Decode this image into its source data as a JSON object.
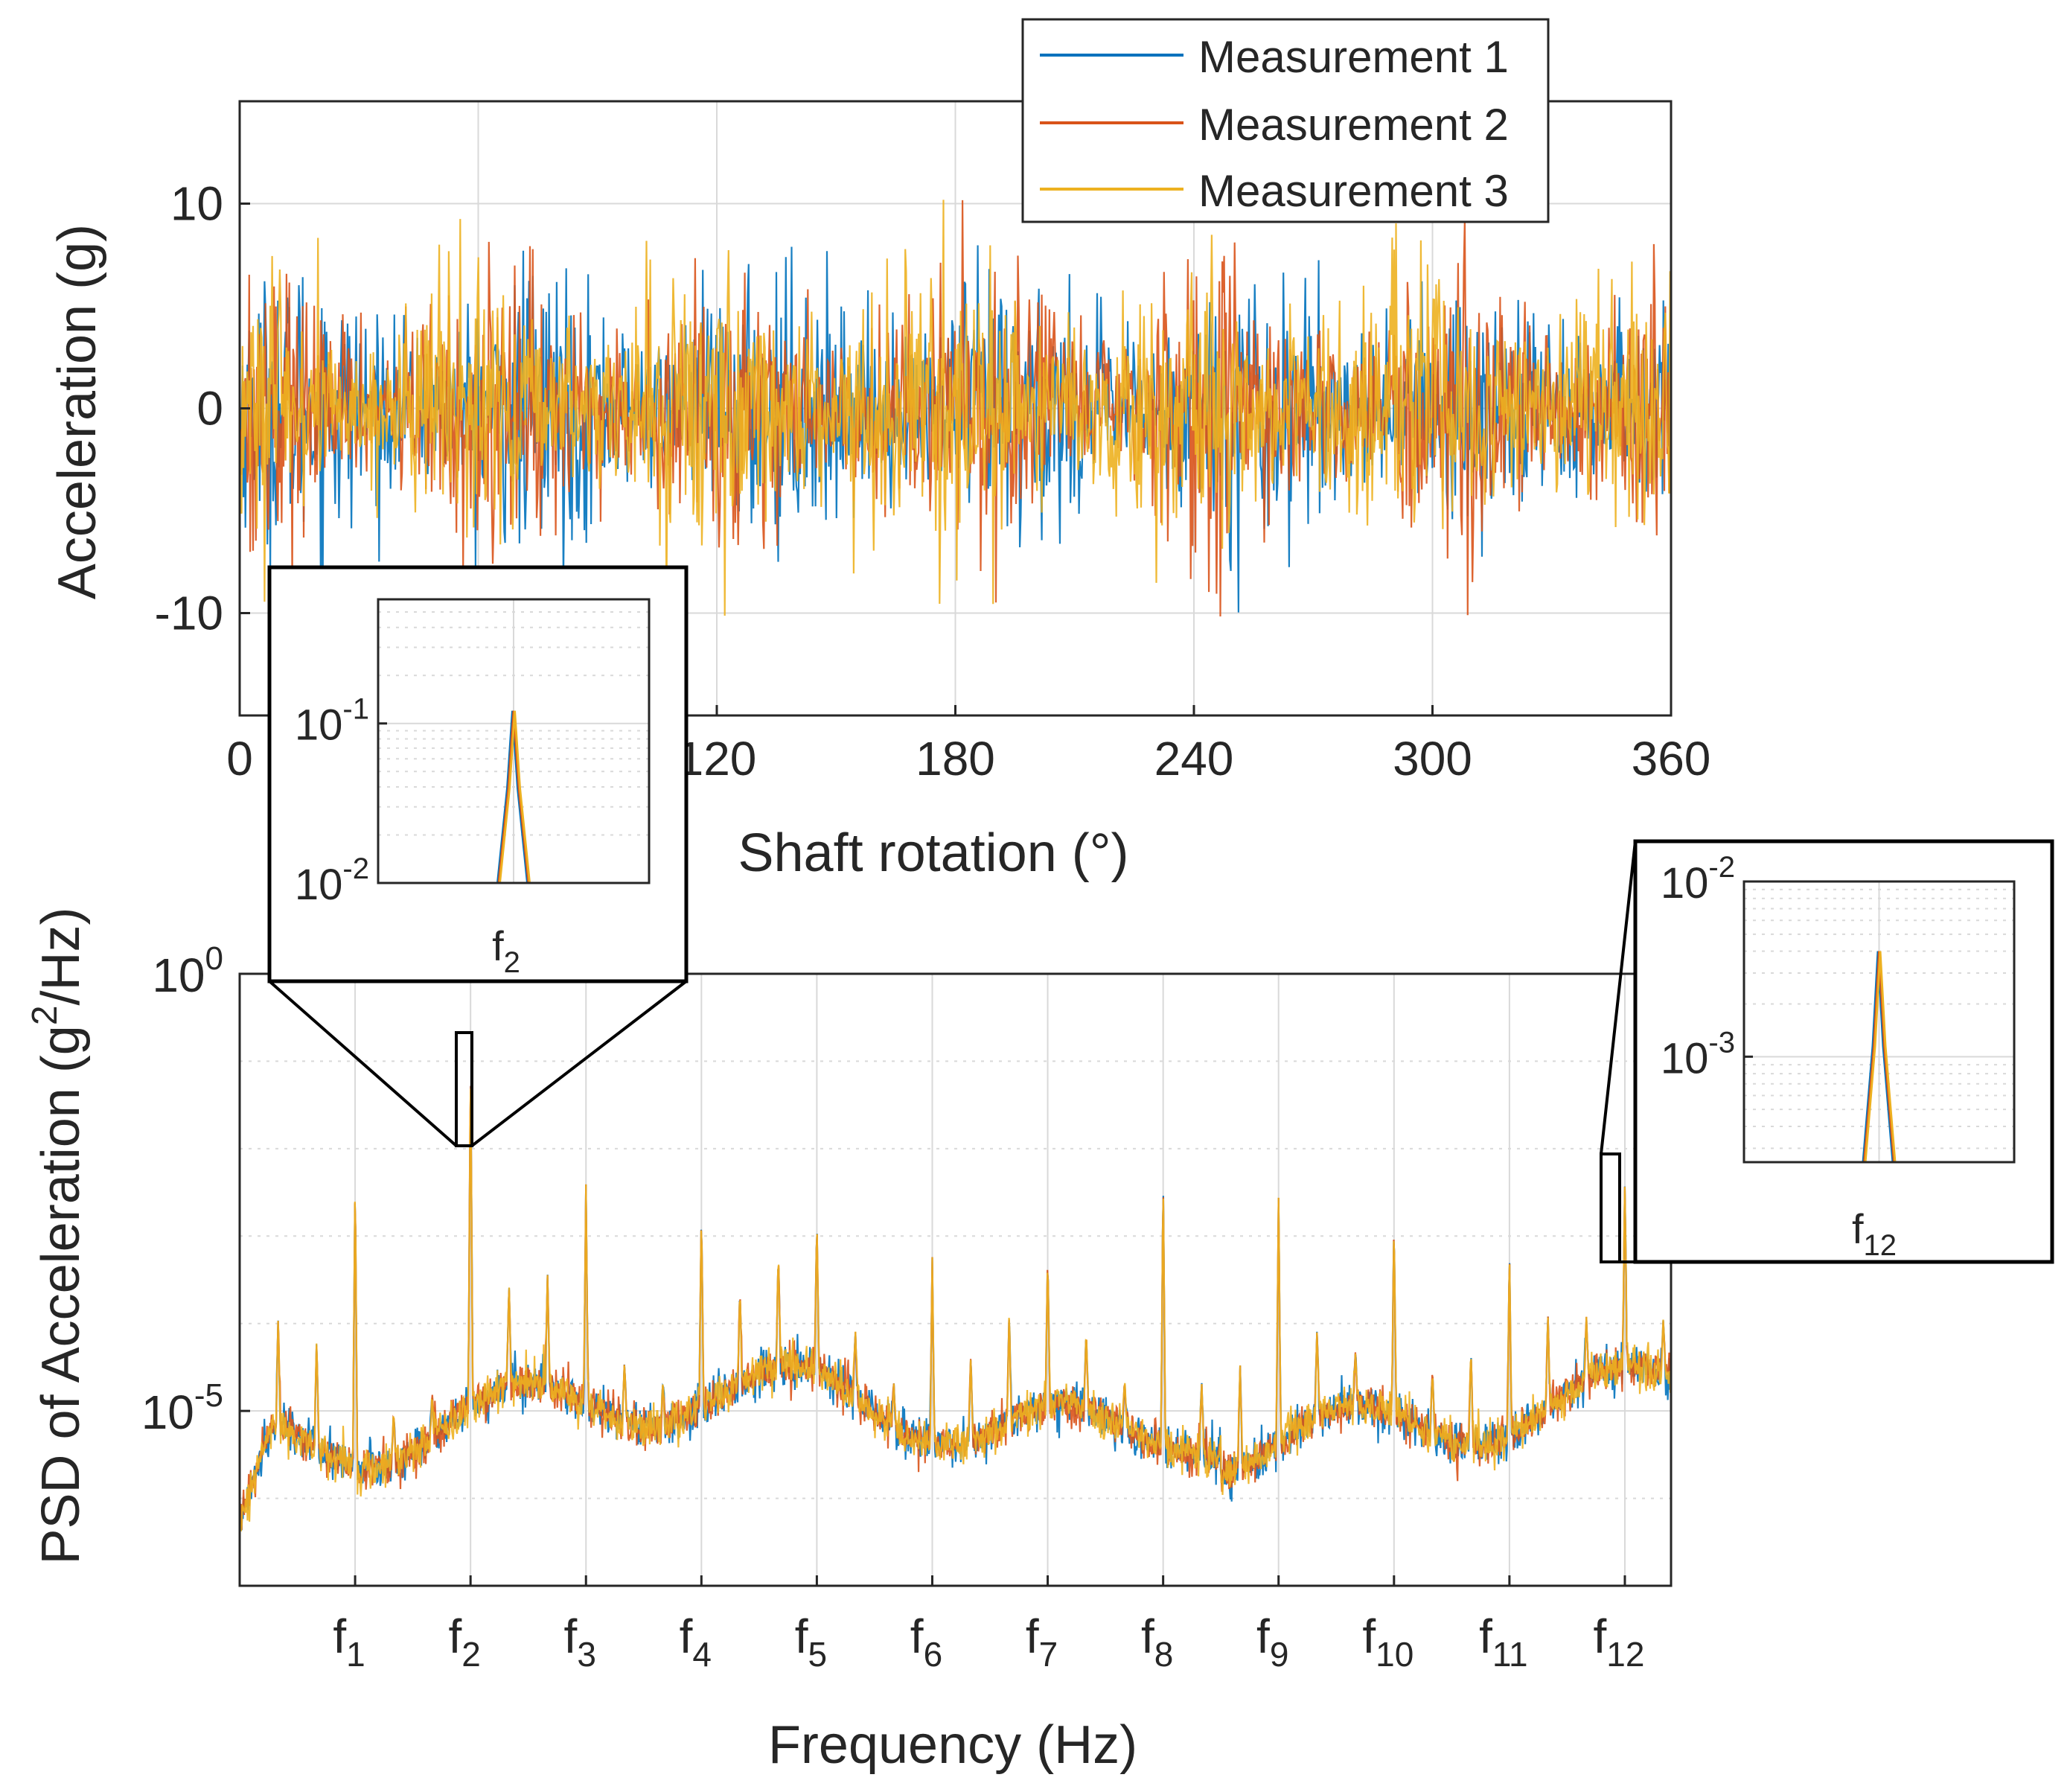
{
  "figure": {
    "colors": {
      "measurement_1": "#0072BD",
      "measurement_2": "#D95319",
      "measurement_3": "#EDB120",
      "axis": "#262626",
      "grid": "#d9d9d9"
    }
  },
  "chart_data": [
    {
      "type": "line",
      "xlabel": "Shaft rotation (°)",
      "ylabel": "Acceleration (g)",
      "xlim": [
        0,
        360
      ],
      "ylim": [
        -15,
        15
      ],
      "x_ticks": [
        0,
        60,
        120,
        180,
        240,
        300,
        360
      ],
      "x_tick_labels": [
        "0",
        "60",
        "120",
        "180",
        "240",
        "300",
        "360"
      ],
      "y_ticks": [
        -10,
        0,
        10
      ],
      "y_tick_labels": [
        "-10",
        "0",
        "10"
      ],
      "grid": true,
      "legend_position": "top-right",
      "series": [
        {
          "name": "Measurement 1",
          "color": "#0072BD",
          "amplitude_range": [
            -12,
            11
          ]
        },
        {
          "name": "Measurement 2",
          "color": "#D95319",
          "amplitude_range": [
            -12,
            10.5
          ]
        },
        {
          "name": "Measurement 3",
          "color": "#EDB120",
          "amplitude_range": [
            -15,
            12
          ]
        }
      ]
    },
    {
      "type": "line",
      "xlabel": "Frequency (Hz)",
      "ylabel_parts": [
        "PSD of Acceleration (g",
        "2",
        "/Hz)"
      ],
      "y_scale": "log",
      "y_decades_shown": [
        0,
        -5
      ],
      "ylim": [
        1e-07,
        1
      ],
      "y_tick_labels": [
        {
          "base": "10",
          "exp": "0",
          "value": 1
        },
        {
          "base": "10",
          "exp": "-5",
          "value": 1e-05
        }
      ],
      "x_ticks": [
        {
          "base": "f",
          "sub": "1"
        },
        {
          "base": "f",
          "sub": "2"
        },
        {
          "base": "f",
          "sub": "3"
        },
        {
          "base": "f",
          "sub": "4"
        },
        {
          "base": "f",
          "sub": "5"
        },
        {
          "base": "f",
          "sub": "6"
        },
        {
          "base": "f",
          "sub": "7"
        },
        {
          "base": "f",
          "sub": "8"
        },
        {
          "base": "f",
          "sub": "9"
        },
        {
          "base": "f",
          "sub": "10"
        },
        {
          "base": "f",
          "sub": "11"
        },
        {
          "base": "f",
          "sub": "12"
        }
      ],
      "grid": true,
      "series": [
        {
          "name": "Measurement 1",
          "color": "#0072BD"
        },
        {
          "name": "Measurement 2",
          "color": "#D95319"
        },
        {
          "name": "Measurement 3",
          "color": "#EDB120"
        }
      ],
      "peaks": [
        {
          "at": "f1",
          "value": 0.005
        },
        {
          "at": "f2",
          "value": 0.12
        },
        {
          "at": "f3",
          "value": 0.004
        },
        {
          "at": "f4",
          "value": 0.002
        },
        {
          "at": "f5",
          "value": 0.0015
        },
        {
          "at": "f6",
          "value": 0.0006
        },
        {
          "at": "f7",
          "value": 0.0006
        },
        {
          "at": "f8",
          "value": 0.005
        },
        {
          "at": "f9",
          "value": 0.003
        },
        {
          "at": "f10",
          "value": 0.0015
        },
        {
          "at": "f11",
          "value": 0.0007
        },
        {
          "at": "f12",
          "value": 0.004
        }
      ],
      "insets": [
        {
          "name": "f2 zoom",
          "xlabel": {
            "base": "f",
            "sub": "2"
          },
          "y_scale": "log",
          "ylim": [
            0.01,
            0.6
          ],
          "y_tick_labels": [
            {
              "base": "10",
              "exp": "-1",
              "value": 0.1
            },
            {
              "base": "10",
              "exp": "-2",
              "value": 0.01
            }
          ],
          "peak_value": 0.12
        },
        {
          "name": "f12 zoom",
          "xlabel": {
            "base": "f",
            "sub": "12"
          },
          "y_scale": "log",
          "ylim": [
            0.00025,
            0.01
          ],
          "y_tick_labels": [
            {
              "base": "10",
              "exp": "-2",
              "value": 0.01
            },
            {
              "base": "10",
              "exp": "-3",
              "value": 0.001
            }
          ],
          "peak_value": 0.004
        }
      ]
    }
  ]
}
